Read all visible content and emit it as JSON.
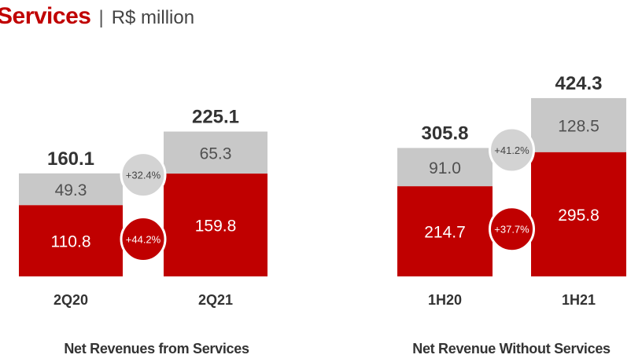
{
  "header": {
    "title": "Services",
    "separator": "|",
    "unit": "R$ million"
  },
  "colors": {
    "accent": "#c00000",
    "grey": "#c8c8c8",
    "circle_grey": "#d3d3d3"
  },
  "chart_data": [
    {
      "type": "bar",
      "stacked": true,
      "title": "Net Revenues from Services",
      "categories": [
        "2Q20",
        "2Q21"
      ],
      "series": [
        {
          "color": "#c00000",
          "values": [
            110.8,
            159.8
          ]
        },
        {
          "color": "#c8c8c8",
          "values": [
            49.3,
            65.3
          ]
        }
      ],
      "totals": [
        160.1,
        225.1
      ],
      "growth_labels": [
        {
          "text": "+32.4%",
          "style": "grey"
        },
        {
          "text": "+44.2%",
          "style": "red"
        }
      ],
      "ylim": [
        0,
        225.1
      ]
    },
    {
      "type": "bar",
      "stacked": true,
      "title": "Net Revenue Without Services",
      "categories": [
        "1H20",
        "1H21"
      ],
      "series": [
        {
          "color": "#c00000",
          "values": [
            214.7,
            295.8
          ]
        },
        {
          "color": "#c8c8c8",
          "values": [
            91.0,
            128.5
          ]
        }
      ],
      "totals": [
        305.8,
        424.3
      ],
      "growth_labels": [
        {
          "text": "+41.2%",
          "style": "grey"
        },
        {
          "text": "+37.7%",
          "style": "red"
        }
      ],
      "ylim": [
        0,
        424.3
      ]
    }
  ]
}
